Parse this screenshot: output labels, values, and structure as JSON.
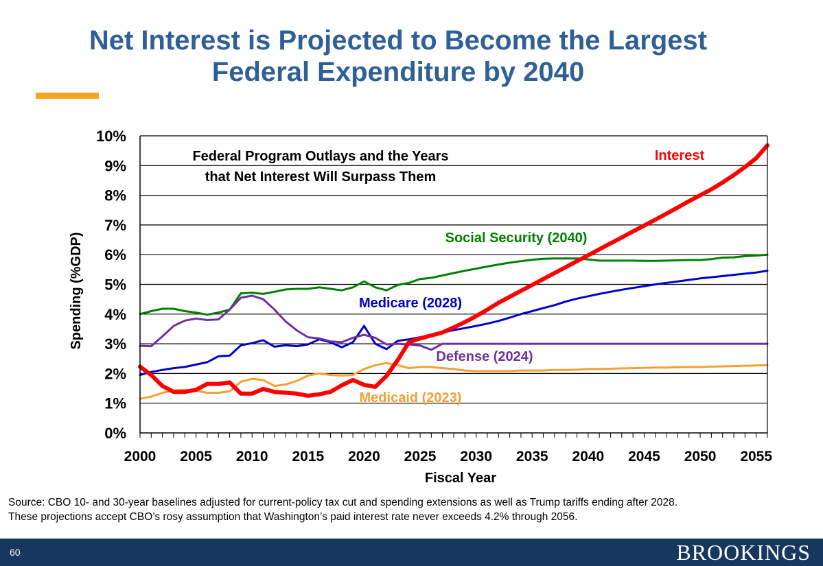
{
  "slide": {
    "title_line1": "Net Interest is Projected to Become the Largest",
    "title_line2": "Federal Expenditure by 2040",
    "source_line1": "Source: CBO 10- and 30-year baselines adjusted for current-policy tax cut and spending extensions as well as Trump tariffs ending after 2028.",
    "source_line2": "These projections accept CBO’s rosy assumption that Washington’s paid interest rate never exceeds 4.2% through 2056.",
    "page_number": "60",
    "brand": "BROOKINGS",
    "colors": {
      "title": "#2f5f97",
      "accent": "#f5a623",
      "footer": "#17375e"
    }
  },
  "chart_data": {
    "type": "line",
    "inner_title_line1": "Federal Program Outlays and the Years",
    "inner_title_line2": "that Net Interest Will Surpass Them",
    "xlabel": "Fiscal Year",
    "ylabel": "Spending (%GDP)",
    "xlim": [
      2000,
      2056
    ],
    "ylim": [
      0,
      10
    ],
    "x_ticks": [
      "2000",
      "2005",
      "2010",
      "2015",
      "2020",
      "2025",
      "2030",
      "2035",
      "2040",
      "2045",
      "2050",
      "2055"
    ],
    "y_ticks": [
      "0%",
      "1%",
      "2%",
      "3%",
      "4%",
      "5%",
      "6%",
      "7%",
      "8%",
      "9%",
      "10%"
    ],
    "grid": true,
    "x": [
      2000,
      2001,
      2002,
      2003,
      2004,
      2005,
      2006,
      2007,
      2008,
      2009,
      2010,
      2011,
      2012,
      2013,
      2014,
      2015,
      2016,
      2017,
      2018,
      2019,
      2020,
      2021,
      2022,
      2023,
      2024,
      2025,
      2026,
      2027,
      2028,
      2029,
      2030,
      2031,
      2032,
      2033,
      2034,
      2035,
      2036,
      2037,
      2038,
      2039,
      2040,
      2041,
      2042,
      2043,
      2044,
      2045,
      2046,
      2047,
      2048,
      2049,
      2050,
      2051,
      2052,
      2053,
      2054,
      2055,
      2056
    ],
    "series": [
      {
        "name": "Social Security",
        "label": "Social Security (2040)",
        "color": "#008000",
        "width": 3,
        "values": [
          4.0,
          4.1,
          4.18,
          4.18,
          4.1,
          4.05,
          3.98,
          4.05,
          4.15,
          4.7,
          4.72,
          4.68,
          4.75,
          4.83,
          4.85,
          4.85,
          4.9,
          4.85,
          4.8,
          4.9,
          5.1,
          4.9,
          4.8,
          4.98,
          5.05,
          5.18,
          5.22,
          5.3,
          5.38,
          5.46,
          5.53,
          5.6,
          5.67,
          5.73,
          5.78,
          5.83,
          5.86,
          5.87,
          5.87,
          5.87,
          5.84,
          5.8,
          5.8,
          5.8,
          5.8,
          5.79,
          5.79,
          5.8,
          5.81,
          5.82,
          5.82,
          5.85,
          5.9,
          5.91,
          5.95,
          5.97,
          6.0
        ]
      },
      {
        "name": "Medicare",
        "label": "Medicare (2028)",
        "color": "#0000cc",
        "width": 3,
        "values": [
          1.95,
          2.05,
          2.12,
          2.18,
          2.22,
          2.3,
          2.38,
          2.58,
          2.6,
          2.95,
          3.02,
          3.12,
          2.9,
          2.95,
          2.92,
          2.98,
          3.15,
          3.05,
          2.88,
          3.05,
          3.6,
          3.0,
          2.82,
          3.1,
          3.15,
          3.22,
          3.3,
          3.38,
          3.46,
          3.53,
          3.6,
          3.68,
          3.77,
          3.88,
          4.0,
          4.1,
          4.2,
          4.3,
          4.42,
          4.52,
          4.6,
          4.68,
          4.75,
          4.82,
          4.88,
          4.94,
          5.0,
          5.05,
          5.1,
          5.15,
          5.2,
          5.24,
          5.28,
          5.32,
          5.36,
          5.4,
          5.46
        ]
      },
      {
        "name": "Defense",
        "label": "Defense (2024)",
        "color": "#7030a0",
        "width": 3,
        "values": [
          2.93,
          2.92,
          3.25,
          3.6,
          3.78,
          3.85,
          3.8,
          3.82,
          4.15,
          4.55,
          4.62,
          4.5,
          4.15,
          3.75,
          3.45,
          3.22,
          3.18,
          3.08,
          3.05,
          3.2,
          3.3,
          3.2,
          2.98,
          3.0,
          2.98,
          2.94,
          2.8,
          3.0,
          3.0,
          3.0,
          3.0,
          3.0,
          3.0,
          3.0,
          3.0,
          3.0,
          3.0,
          3.0,
          3.0,
          3.0,
          3.0,
          3.0,
          3.0,
          3.0,
          3.0,
          3.0,
          3.0,
          3.0,
          3.0,
          3.0,
          3.0,
          3.0,
          3.0,
          3.0,
          3.0,
          3.0,
          3.0
        ]
      },
      {
        "name": "Medicaid",
        "label": "Medicaid (2023)",
        "color": "#f5a030",
        "width": 3,
        "values": [
          1.15,
          1.22,
          1.35,
          1.43,
          1.45,
          1.42,
          1.35,
          1.35,
          1.4,
          1.72,
          1.82,
          1.78,
          1.58,
          1.63,
          1.75,
          1.93,
          2.0,
          1.95,
          1.93,
          1.95,
          2.15,
          2.28,
          2.35,
          2.28,
          2.18,
          2.22,
          2.22,
          2.18,
          2.15,
          2.1,
          2.08,
          2.08,
          2.08,
          2.08,
          2.1,
          2.1,
          2.1,
          2.12,
          2.12,
          2.13,
          2.15,
          2.15,
          2.16,
          2.17,
          2.18,
          2.19,
          2.2,
          2.2,
          2.21,
          2.22,
          2.22,
          2.23,
          2.24,
          2.25,
          2.26,
          2.27,
          2.28
        ]
      },
      {
        "name": "Interest",
        "label": "Interest",
        "color": "#ff0000",
        "width": 6,
        "values": [
          2.23,
          1.95,
          1.58,
          1.38,
          1.38,
          1.45,
          1.65,
          1.65,
          1.7,
          1.32,
          1.32,
          1.48,
          1.38,
          1.35,
          1.32,
          1.25,
          1.3,
          1.38,
          1.6,
          1.78,
          1.62,
          1.55,
          1.92,
          2.45,
          3.05,
          3.18,
          3.28,
          3.38,
          3.55,
          3.73,
          3.93,
          4.15,
          4.38,
          4.58,
          4.78,
          4.98,
          5.18,
          5.38,
          5.58,
          5.78,
          5.98,
          6.18,
          6.38,
          6.58,
          6.78,
          6.98,
          7.18,
          7.38,
          7.59,
          7.8,
          8.0,
          8.2,
          8.43,
          8.68,
          8.95,
          9.25,
          9.68
        ]
      }
    ]
  }
}
